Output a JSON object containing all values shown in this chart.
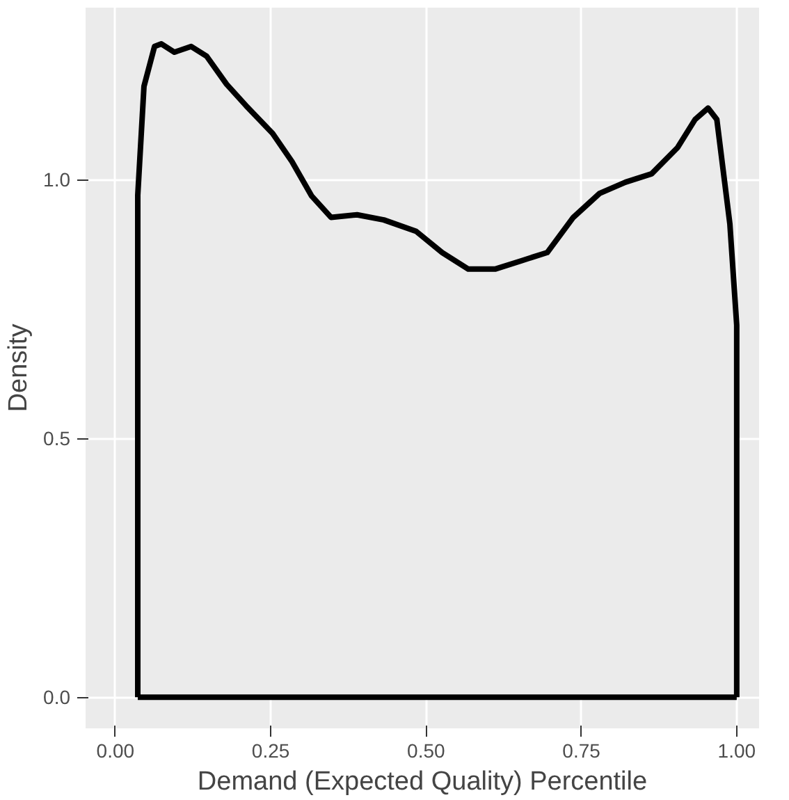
{
  "chart_data": {
    "type": "area",
    "xlabel": "Demand (Expected Quality) Percentile",
    "ylabel": "Density",
    "xlim": [
      -0.048,
      1.036
    ],
    "ylim": [
      -0.06,
      1.332
    ],
    "xticks": [
      {
        "value": 0,
        "label": "0.00"
      },
      0.25,
      {
        "value": 0.5,
        "label": "0.50"
      },
      0.75,
      {
        "value": 1,
        "label": "1.00"
      }
    ],
    "yticks": [
      {
        "value": 0,
        "label": "0.0"
      },
      0.5,
      {
        "value": 1,
        "label": "1.0"
      }
    ],
    "grid": true,
    "line_style": "solid",
    "series": [
      {
        "color": "#000000",
        "x": [
          0.036,
          0.036,
          0.046,
          0.063,
          0.074,
          0.095,
          0.122,
          0.147,
          0.179,
          0.21,
          0.253,
          0.284,
          0.316,
          0.347,
          0.389,
          0.432,
          0.484,
          0.526,
          0.568,
          0.611,
          0.653,
          0.695,
          0.737,
          0.779,
          0.821,
          0.863,
          0.905,
          0.933,
          0.954,
          0.968,
          0.989,
          1.0,
          1.0
        ],
        "values": [
          0,
          0.97,
          1.18,
          1.257,
          1.262,
          1.246,
          1.257,
          1.238,
          1.184,
          1.143,
          1.089,
          1.035,
          0.968,
          0.927,
          0.932,
          0.922,
          0.9,
          0.859,
          0.827,
          0.827,
          0.843,
          0.859,
          0.927,
          0.973,
          0.995,
          1.011,
          1.062,
          1.116,
          1.138,
          1.116,
          0.914,
          0.719,
          0
        ]
      }
    ]
  }
}
